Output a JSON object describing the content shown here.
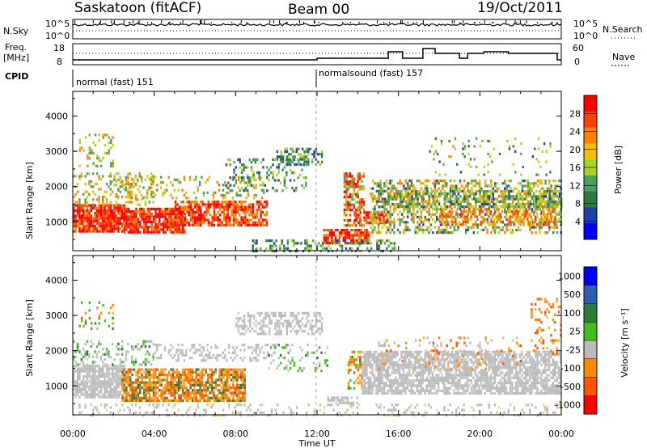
{
  "header": {
    "station": "Saskatoon (fitACF)",
    "beam": "Beam 00",
    "date": "19/Oct/2011"
  },
  "top_strip": {
    "left_label_sky": "N.Sky",
    "left_label_freq_1": "Freq.",
    "left_label_freq_2": "[MHz]",
    "left_label_cpid": "CPID",
    "right_label_search": "N.Search",
    "right_label_nave": "Nave",
    "sky_ticks": [
      "10^5",
      "10^0"
    ],
    "search_ticks": [
      "10^5",
      "10^0"
    ],
    "freq_ticks": [
      "18",
      "8"
    ],
    "nave_ticks": [
      "60",
      "0"
    ]
  },
  "cpid_segments": [
    {
      "label": "normal (fast) 151",
      "start_hour": 0
    },
    {
      "label": "normalsound (fast) 157",
      "start_hour": 12
    }
  ],
  "colors": {
    "power_scale": [
      "#0000ff",
      "#2040b0",
      "#2e7b3c",
      "#4b9e63",
      "#a8d22a",
      "#f0c000",
      "#ff8000",
      "#ff4000",
      "#ff0000"
    ],
    "velocity_scale": [
      "#0000ff",
      "#2f5fb0",
      "#2e7b3c",
      "#44bb22",
      "#bbbbbb",
      "#ff8800",
      "#ff5500",
      "#ff0000"
    ],
    "ground_scatter": "#bbbbbb"
  },
  "chart_data": [
    {
      "type": "heatmap",
      "name": "power",
      "ylabel": "Slant Range [km]",
      "xlabel": "",
      "xlim": [
        "00:00",
        "24:00"
      ],
      "ylim": [
        180,
        4700
      ],
      "x_tick_labels": [
        "00:00",
        "04:00",
        "08:00",
        "12:00",
        "16:00",
        "20:00",
        "00:00"
      ],
      "y_tick_labels": [
        "1000",
        "2000",
        "3000",
        "4000"
      ],
      "colorbar": {
        "label": "Power [dB]",
        "range": [
          0,
          32
        ],
        "ticks": [
          "28",
          "24",
          "20",
          "16",
          "12",
          "8",
          "4"
        ]
      },
      "features": [
        {
          "hours": [
            0.0,
            5.0
          ],
          "range_km": [
            700,
            1500
          ],
          "approx_db": 28
        },
        {
          "hours": [
            5.0,
            9.5
          ],
          "range_km": [
            900,
            1600
          ],
          "approx_db": 26
        },
        {
          "hours": [
            12.5,
            14.5
          ],
          "range_km": [
            400,
            1700
          ],
          "approx_db": 26
        },
        {
          "hours": [
            14.5,
            24.0
          ],
          "range_km": [
            700,
            2200
          ],
          "approx_db": 14
        }
      ]
    },
    {
      "type": "heatmap",
      "name": "velocity",
      "ylabel": "Slant Range [km]",
      "xlabel": "Time UT",
      "xlim": [
        "00:00",
        "24:00"
      ],
      "ylim": [
        180,
        4700
      ],
      "x_tick_labels": [
        "00:00",
        "04:00",
        "08:00",
        "12:00",
        "16:00",
        "20:00",
        "00:00"
      ],
      "y_tick_labels": [
        "1000",
        "2000",
        "3000",
        "4000"
      ],
      "colorbar": {
        "label": "Velocity [m s⁻¹]",
        "ticks": [
          "1000",
          "500",
          "100",
          "25",
          "-25",
          "-100",
          "-500",
          "-1000"
        ]
      },
      "features": [
        {
          "hours": [
            0.0,
            2.5
          ],
          "range_km": [
            700,
            1600
          ],
          "approx_velocity": 0,
          "ground_scatter": true
        },
        {
          "hours": [
            2.5,
            8.5
          ],
          "range_km": [
            600,
            1500
          ],
          "approx_velocity": -300
        },
        {
          "hours": [
            14.0,
            24.0
          ],
          "range_km": [
            800,
            2000
          ],
          "approx_velocity": 0,
          "ground_scatter": true
        }
      ]
    }
  ]
}
